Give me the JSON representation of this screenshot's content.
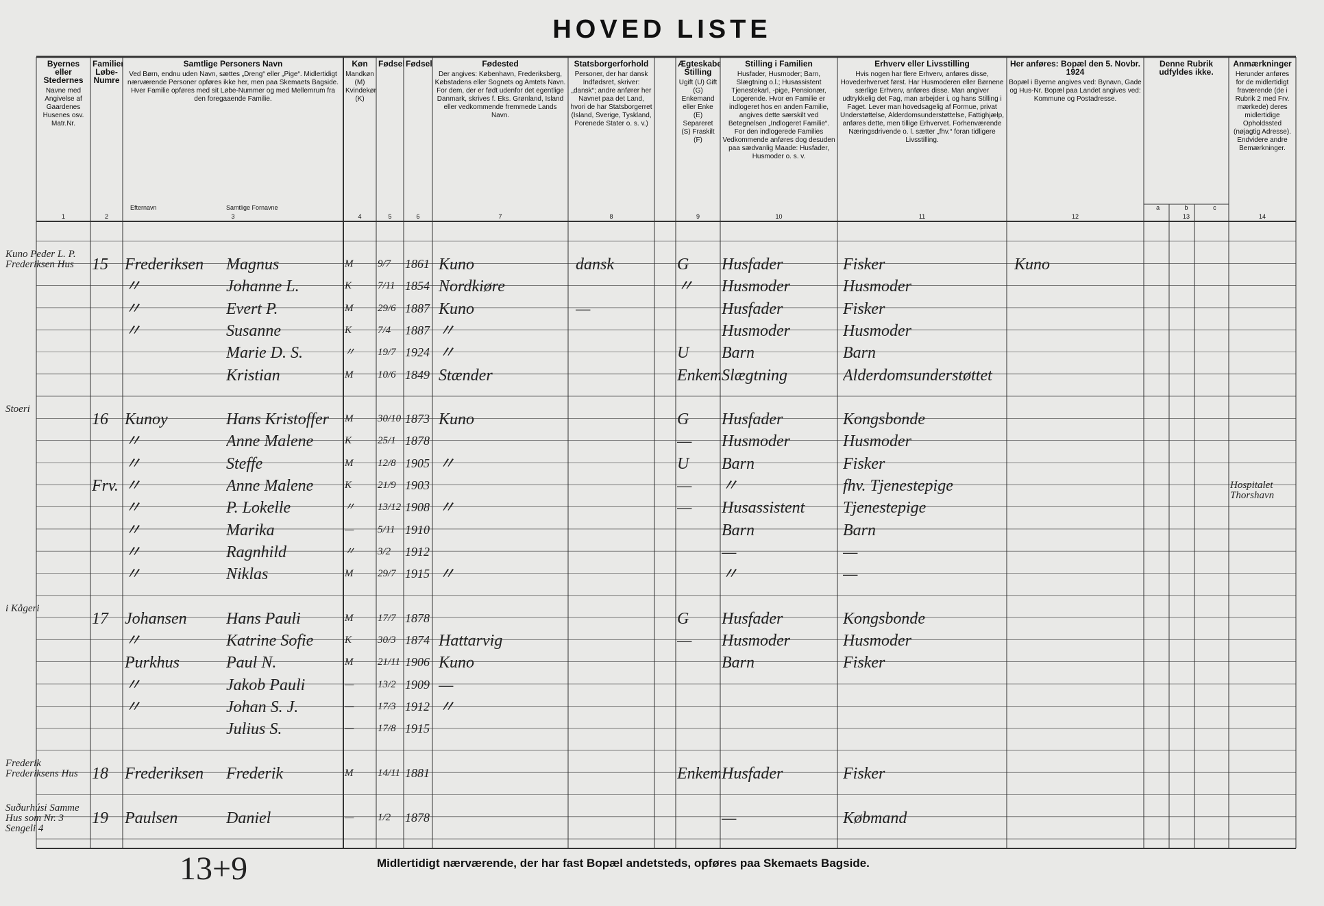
{
  "header": {
    "title": "HOVED LISTE"
  },
  "columns": [
    {
      "number": "1",
      "heading": "Byernes eller Stedernes",
      "text": "Navne med Angivelse af Gaardenes Husenes osv. Matr.Nr."
    },
    {
      "number": "2",
      "heading": "Familiernes Løbe-Numre"
    },
    {
      "number": "3",
      "heading": "Samtlige Personers Navn",
      "text": "Ved Børn, endnu uden Navn, sættes „Dreng“ eller „Pige“. Midlertidigt nærværende Personer opføres ikke her, men paa Skemaets Bagside. Hver Familie opføres med sit Løbe-Nummer og med Mellemrum fra den foregaaende Familie.",
      "sub": [
        "Efternavn",
        "Samtlige Fornavne"
      ]
    },
    {
      "number": "4",
      "heading": "Køn",
      "text": "Mandkøn (M) Kvindekøn (K)"
    },
    {
      "number": "5",
      "heading": "Fødselsdag"
    },
    {
      "number": "6",
      "heading": "Fødselsaar"
    },
    {
      "number": "7",
      "heading": "Fødested",
      "text": "Der angives: København, Frederiksberg, Købstadens eller Sognets og Amtets Navn. For dem, der er født udenfor det egentlige Danmark, skrives f. Eks. Grønland, Island eller vedkommende fremmede Lands Navn."
    },
    {
      "number": "8",
      "heading": "Statsborgerforhold",
      "text": "Personer, der har dansk Indfødsret, skriver: „dansk“; andre anfører her Navnet paa det Land, hvori de har Statsborgerret (Island, Sverige, Tyskland, Porenede Stater o. s. v.)"
    },
    {
      "number": "9",
      "heading": "Ægteskabelig Stilling",
      "text": "Ugift (U) Gift (G) Enkemand eller Enke (E) Separeret (S) Fraskilt (F)"
    },
    {
      "number": "10",
      "heading": "Stilling i Familien",
      "text": "Husfader, Husmoder; Barn, Slægtning o.l.; Husassistent Tjenestekarl, -pige, Pensionær, Logerende. Hvor en Familie er indlogeret hos en anden Familie, angives dette særskilt ved Betegnelsen „Indlogeret Familie“. For den indlogerede Families Vedkommende anføres dog desuden paa sædvanlig Maade: Husfader, Husmoder o. s. v."
    },
    {
      "number": "11",
      "heading": "Erhverv eller Livsstilling",
      "text": "Hvis nogen har flere Erhverv, anføres disse, Hovederhvervet først. Har Husmoderen eller Børnene særlige Erhverv, anføres disse. Man angiver udtrykkelig det Fag, man arbejder i, og hans Stilling i Faget. Lever man hovedsagelig af Formue, privat Understøttelse, Alderdomsunderstøttelse, Fattighjælp, anføres dette, men tillige Erhvervet. Forhenværende Næringsdrivende o. l. sætter „fhv.“ foran tidligere Livsstilling."
    },
    {
      "number": "12",
      "heading": "Her anføres: Bopæl den 5. Novbr. 1924",
      "text": "Bopæl i Byerne angives ved: Bynavn, Gade og Hus-Nr. Bopæl paa Landet angives ved: Kommune og Postadresse."
    },
    {
      "number": "13",
      "heading": "Denne Rubrik udfyldes ikke.",
      "sub": [
        "a",
        "b",
        "c"
      ]
    },
    {
      "number": "14",
      "heading": "Anmærkninger",
      "text": "Herunder anføres for de midlertidigt fraværende (de i Rubrik 2 med Frv. mærkede) deres midlertidige Opholdssted (nøjagtig Adresse). Endvidere andre Bemærkninger."
    }
  ],
  "families": [
    {
      "place": "Kuno Peder L. P. Frederiksen Hus",
      "nr": "15",
      "persons": [
        {
          "surname": "Frederiksen",
          "given": "Magnus",
          "sex": "M",
          "day": "9/7",
          "year": "1861",
          "birthplace": "Kuno",
          "citizenship": "dansk",
          "marital": "G",
          "position": "Husfader",
          "occupation": "Fisker",
          "residence": "Kuno"
        },
        {
          "surname": "〃",
          "given": "Johanne L.",
          "sex": "K",
          "day": "7/11",
          "year": "1854",
          "birthplace": "Nordkiøre",
          "marital": "〃",
          "position": "Husmoder",
          "occupation": "Husmoder"
        },
        {
          "surname": "〃",
          "given": "Evert P.",
          "sex": "M",
          "day": "29/6",
          "year": "1887",
          "birthplace": "Kuno",
          "citizenship": "—",
          "position": "Husfader",
          "occupation": "Fisker"
        },
        {
          "surname": "〃",
          "given": "Susanne",
          "sex": "K",
          "day": "7/4",
          "year": "1887",
          "birthplace": "〃",
          "position": "Husmoder",
          "occupation": "Husmoder"
        },
        {
          "given": "Marie D. S.",
          "sex": "〃",
          "day": "19/7",
          "year": "1924",
          "birthplace": "〃",
          "marital": "U",
          "position": "Barn",
          "occupation": "Barn"
        },
        {
          "given": "Kristian",
          "sex": "M",
          "day": "10/6",
          "year": "1849",
          "birthplace": "Stænder",
          "marital": "Enkem.",
          "position": "Slægtning",
          "occupation": "Alderdomsunderstøttet"
        }
      ]
    },
    {
      "place": "Stoeri",
      "nr": "16",
      "persons": [
        {
          "surname": "Kunoy",
          "given": "Hans Kristoffer",
          "sex": "M",
          "day": "30/10",
          "year": "1873",
          "birthplace": "Kuno",
          "marital": "G",
          "position": "Husfader",
          "occupation": "Kongsbonde"
        },
        {
          "surname": "〃",
          "given": "Anne Malene",
          "sex": "K",
          "day": "25/1",
          "year": "1878",
          "marital": "—",
          "position": "Husmoder",
          "occupation": "Husmoder"
        },
        {
          "surname": "〃",
          "given": "Steffe",
          "sex": "M",
          "day": "12/8",
          "year": "1905",
          "birthplace": "〃",
          "marital": "U",
          "position": "Barn",
          "occupation": "Fisker"
        },
        {
          "mark": "Frv.",
          "surname": "〃",
          "given": "Anne Malene",
          "sex": "K",
          "day": "21/9",
          "year": "1903",
          "marital": "—",
          "position": "〃",
          "occupation": "fhv. Tjenestepige",
          "remarks": "Hospitalet Thorshavn"
        },
        {
          "surname": "〃",
          "given": "P. Lokelle",
          "sex": "〃",
          "day": "13/12",
          "year": "1908",
          "birthplace": "〃",
          "marital": "—",
          "position": "Husassistent",
          "occupation": "Tjenestepige"
        },
        {
          "surname": "〃",
          "given": "Marika",
          "sex": "—",
          "day": "5/11",
          "year": "1910",
          "position": "Barn",
          "occupation": "Barn"
        },
        {
          "surname": "〃",
          "given": "Ragnhild",
          "sex": "〃",
          "day": "3/2",
          "year": "1912",
          "position": "—",
          "occupation": "—"
        },
        {
          "surname": "〃",
          "given": "Niklas",
          "sex": "M",
          "day": "29/7",
          "year": "1915",
          "birthplace": "〃",
          "position": "〃",
          "occupation": "—"
        }
      ]
    },
    {
      "place": "i Kågeri",
      "nr": "17",
      "persons": [
        {
          "surname": "Johansen",
          "given": "Hans Pauli",
          "sex": "M",
          "day": "17/7",
          "year": "1878",
          "marital": "G",
          "position": "Husfader",
          "occupation": "Kongsbonde"
        },
        {
          "surname": "〃",
          "given": "Katrine Sofie",
          "sex": "K",
          "day": "30/3",
          "year": "1874",
          "birthplace": "Hattarvig",
          "marital": "—",
          "position": "Husmoder",
          "occupation": "Husmoder"
        },
        {
          "surname": "Purkhus",
          "given": "Paul N.",
          "sex": "M",
          "day": "21/11",
          "year": "1906",
          "birthplace": "Kuno",
          "position": "Barn",
          "occupation": "Fisker"
        },
        {
          "surname": "〃",
          "given": "Jakob Pauli",
          "sex": "—",
          "day": "13/2",
          "year": "1909",
          "birthplace": "—"
        },
        {
          "surname": "〃",
          "given": "Johan S. J.",
          "sex": "—",
          "day": "17/3",
          "year": "1912",
          "birthplace": "〃"
        },
        {
          "given": "Julius S.",
          "sex": "—",
          "day": "17/8",
          "year": "1915"
        }
      ]
    },
    {
      "place": "Frederik Frederiksens Hus",
      "nr": "18",
      "persons": [
        {
          "surname": "Frederiksen",
          "given": "Frederik",
          "sex": "M",
          "day": "14/11",
          "year": "1881",
          "marital": "Enkem.",
          "position": "Husfader",
          "occupation": "Fisker"
        }
      ]
    },
    {
      "place": "Suðurhúsi Samme Hus som Nr. 3 Sengeli 4",
      "nr": "19",
      "persons": [
        {
          "surname": "Paulsen",
          "given": "Daniel",
          "sex": "—",
          "day": "1/2",
          "year": "1878",
          "position": "—",
          "occupation": "Købmand"
        }
      ]
    }
  ],
  "footer": {
    "note": "Midlertidigt nærværende, der har fast Bopæl andetsteds, opføres paa Skemaets Bagside.",
    "tally": "13+9"
  }
}
